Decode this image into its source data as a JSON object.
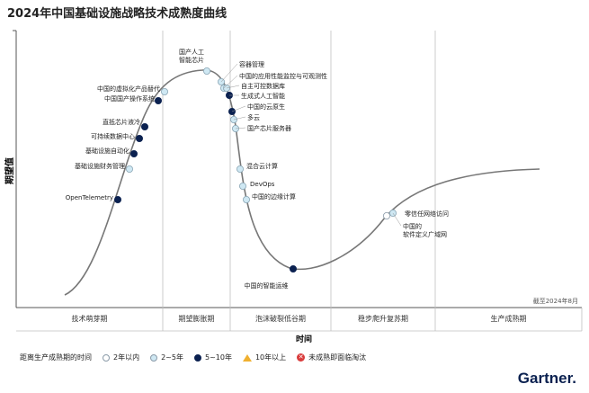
{
  "title": "2024年中国基础设施战略技术成熟度曲线",
  "as_of": "截至2024年8月",
  "brand": "Gartner",
  "colors": {
    "curve": "#777777",
    "two_to_five": "#cfe8f3",
    "five_to_ten": "#0b2150",
    "divider": "#bfbfbf"
  },
  "chart_data": {
    "type": "scatter",
    "title": "2024年中国基础设施战略技术成熟度曲线",
    "xlabel": "时间",
    "ylabel": "期望值",
    "phases": [
      "技术萌芽期",
      "期望膨胀期",
      "泡沫破裂低谷期",
      "稳步爬升复苏期",
      "生产成熟期"
    ],
    "legend_title": "距离生产成熟期的时间",
    "legend": [
      {
        "key": "lt2",
        "label": "2年以内"
      },
      {
        "key": "2to5",
        "label": "2~5年"
      },
      {
        "key": "5to10",
        "label": "5~10年"
      },
      {
        "key": "gt10",
        "label": "10年以上"
      },
      {
        "key": "obsolete",
        "label": "未成熟即面临淘汰"
      }
    ],
    "points": [
      {
        "name": "OpenTelemetry",
        "phase": "技术萌芽期",
        "maturity": "5to10"
      },
      {
        "name": "基础设施财务管理",
        "phase": "技术萌芽期",
        "maturity": "2to5"
      },
      {
        "name": "基础设施自动化",
        "phase": "技术萌芽期",
        "maturity": "5to10"
      },
      {
        "name": "可持续数据中心",
        "phase": "技术萌芽期",
        "maturity": "5to10"
      },
      {
        "name": "直抵芯片液冷",
        "phase": "技术萌芽期",
        "maturity": "5to10"
      },
      {
        "name": "中国国产操作系统",
        "phase": "技术萌芽期",
        "maturity": "5to10"
      },
      {
        "name": "中国的虚拟化产品替代",
        "phase": "期望膨胀期",
        "maturity": "2to5"
      },
      {
        "name": "国产人工\n智能芯片",
        "phase": "期望膨胀期",
        "maturity": "2to5"
      },
      {
        "name": "容器管理",
        "phase": "期望膨胀期",
        "maturity": "2to5"
      },
      {
        "name": "中国的应用性能监控与可观测性",
        "phase": "期望膨胀期",
        "maturity": "2to5"
      },
      {
        "name": "自主可控数据库",
        "phase": "期望膨胀期",
        "maturity": "2to5"
      },
      {
        "name": "生成式人工智能",
        "phase": "泡沫破裂低谷期",
        "maturity": "5to10"
      },
      {
        "name": "中国的云原生",
        "phase": "泡沫破裂低谷期",
        "maturity": "5to10"
      },
      {
        "name": "多云",
        "phase": "泡沫破裂低谷期",
        "maturity": "2to5"
      },
      {
        "name": "国产芯片服务器",
        "phase": "泡沫破裂低谷期",
        "maturity": "2to5"
      },
      {
        "name": "混合云计算",
        "phase": "泡沫破裂低谷期",
        "maturity": "2to5"
      },
      {
        "name": "DevOps",
        "phase": "泡沫破裂低谷期",
        "maturity": "2to5"
      },
      {
        "name": "中国的边缘计算",
        "phase": "泡沫破裂低谷期",
        "maturity": "2to5"
      },
      {
        "name": "中国的智能运维",
        "phase": "泡沫破裂低谷期",
        "maturity": "5to10"
      },
      {
        "name": "零信任网络访问",
        "phase": "稳步爬升复苏期",
        "maturity": "lt2"
      },
      {
        "name": "中国的\n软件定义广域网",
        "phase": "稳步爬升复苏期",
        "maturity": "2to5"
      }
    ]
  }
}
